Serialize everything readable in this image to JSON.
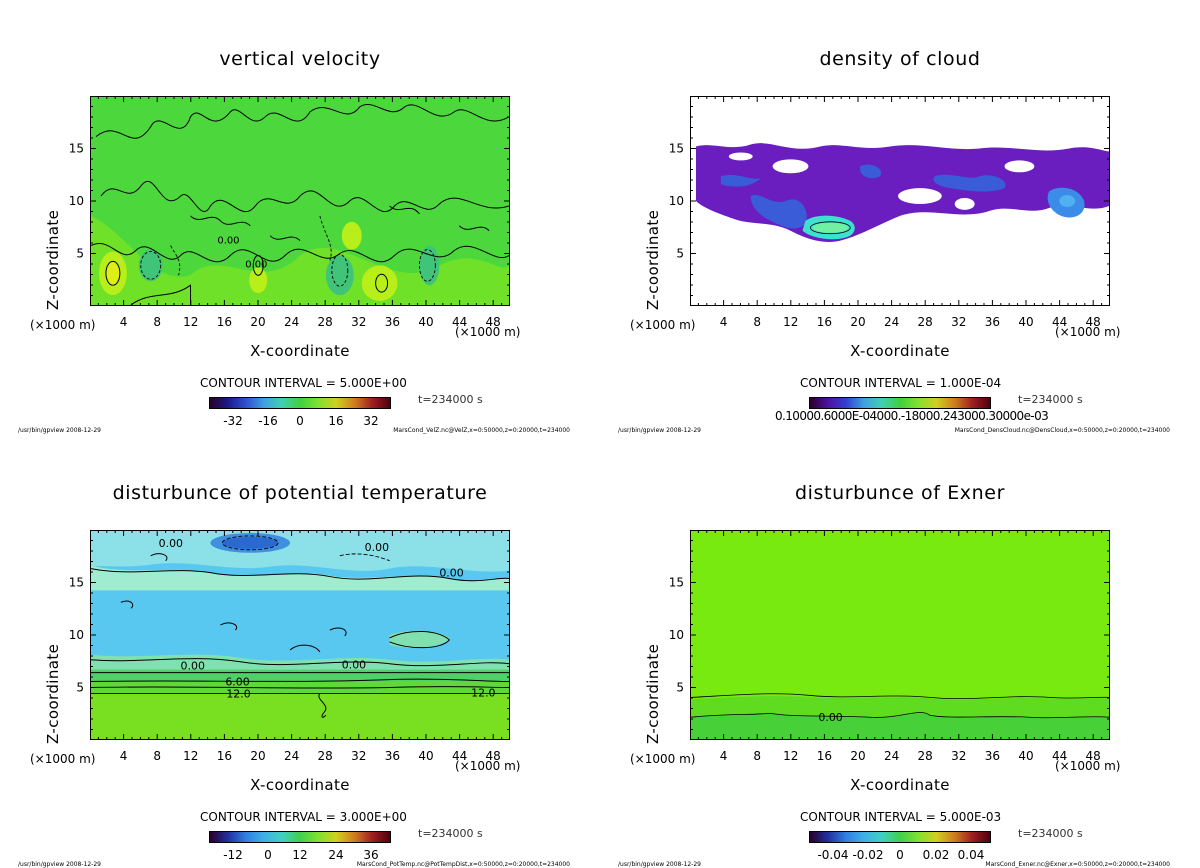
{
  "panels": [
    {
      "title": "vertical velocity",
      "ylabel": "Z-coordinate",
      "xlabel": "X-coordinate",
      "x_unit": "(×1000 m)",
      "contour_interval": "CONTOUR INTERVAL = 5.000E+00",
      "time": "t=234000 s",
      "colorbar_ticks": [
        "-32",
        "-16",
        "0",
        "16",
        "32"
      ],
      "footer_left": "/usr/bin/gpview  2008-12-29",
      "footer_right": "MarsCond_VelZ.nc@VelZ,x=0:50000,z=0:20000,t=234000",
      "contour_labels": [
        "0.00",
        "0.00"
      ]
    },
    {
      "title": "density of cloud",
      "ylabel": "Z-coordinate",
      "xlabel": "X-coordinate",
      "x_unit": "(×1000 m)",
      "contour_interval": "CONTOUR INTERVAL = 1.000E-04",
      "time": "t=234000 s",
      "colorbar_ticks_text": "0.10000.6000E-04000.-18000.243000.30000e-03",
      "footer_left": "/usr/bin/gpview  2008-12-29",
      "footer_right": "MarsCond_DensCloud.nc@DensCloud,x=0:50000,z=0:20000,t=234000"
    },
    {
      "title": "disturbunce of potential temperature",
      "ylabel": "Z-coordinate",
      "xlabel": "X-coordinate",
      "x_unit": "(×1000 m)",
      "contour_interval": "CONTOUR INTERVAL = 3.000E+00",
      "time": "t=234000 s",
      "colorbar_ticks": [
        "-12",
        "0",
        "12",
        "24",
        "36"
      ],
      "footer_left": "/usr/bin/gpview  2008-12-29",
      "footer_right": "MarsCond_PotTemp.nc@PotTempDist,x=0:50000,z=0:20000,t=234000",
      "contour_labels": [
        "0.00",
        "0.00",
        "0.00",
        "0.00",
        "0.00",
        "6.00",
        "12.0",
        "12.0"
      ]
    },
    {
      "title": "disturbunce of Exner",
      "ylabel": "Z-coordinate",
      "xlabel": "X-coordinate",
      "x_unit": "(×1000 m)",
      "contour_interval": "CONTOUR INTERVAL = 5.000E-03",
      "time": "t=234000 s",
      "colorbar_ticks": [
        "-0.04",
        "-0.02",
        "0",
        "0.02",
        "0.04"
      ],
      "footer_left": "/usr/bin/gpview  2008-12-29",
      "footer_right": "MarsCond_Exner.nc@Exner,x=0:50000,z=0:20000,t=234000",
      "contour_labels": [
        "0.00"
      ]
    }
  ],
  "chart_data": [
    {
      "type": "heatmap",
      "title": "vertical velocity",
      "xlabel": "X-coordinate",
      "ylabel": "Z-coordinate",
      "x_ticks": [
        4,
        8,
        12,
        16,
        20,
        24,
        28,
        32,
        36,
        40,
        44,
        48
      ],
      "y_ticks": [
        5,
        10,
        15
      ],
      "xlim": [
        0,
        50
      ],
      "ylim": [
        0,
        20
      ],
      "colorbar_range": [
        -40,
        40
      ],
      "contour_interval": 5.0
    },
    {
      "type": "heatmap",
      "title": "density of cloud",
      "xlabel": "X-coordinate",
      "ylabel": "Z-coordinate",
      "x_ticks": [
        4,
        8,
        12,
        16,
        20,
        24,
        28,
        32,
        36,
        40,
        44,
        48
      ],
      "y_ticks": [
        5,
        10,
        15
      ],
      "xlim": [
        0,
        50
      ],
      "ylim": [
        0,
        20
      ],
      "contour_interval": 0.0001
    },
    {
      "type": "heatmap",
      "title": "disturbunce of potential temperature",
      "xlabel": "X-coordinate",
      "ylabel": "Z-coordinate",
      "x_ticks": [
        4,
        8,
        12,
        16,
        20,
        24,
        28,
        32,
        36,
        40,
        44,
        48
      ],
      "y_ticks": [
        5,
        10,
        15
      ],
      "xlim": [
        0,
        50
      ],
      "ylim": [
        0,
        20
      ],
      "colorbar_range": [
        -18,
        42
      ],
      "contour_interval": 3.0
    },
    {
      "type": "heatmap",
      "title": "disturbunce of Exner",
      "xlabel": "X-coordinate",
      "ylabel": "Z-coordinate",
      "x_ticks": [
        4,
        8,
        12,
        16,
        20,
        24,
        28,
        32,
        36,
        40,
        44,
        48
      ],
      "y_ticks": [
        5,
        10,
        15
      ],
      "xlim": [
        0,
        50
      ],
      "ylim": [
        0,
        20
      ],
      "colorbar_range": [
        -0.05,
        0.05
      ],
      "contour_interval": 0.005
    }
  ]
}
